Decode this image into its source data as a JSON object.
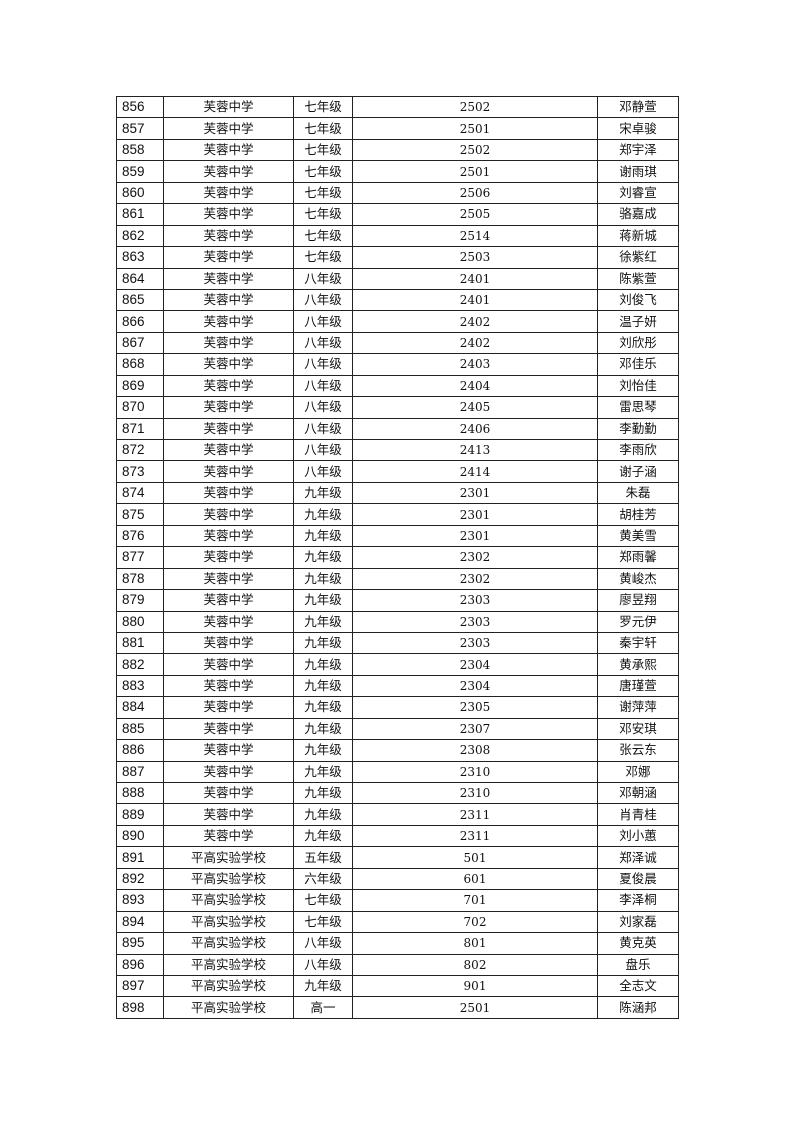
{
  "rows": [
    [
      "856",
      "芙蓉中学",
      "七年级",
      "2502",
      "邓静萱"
    ],
    [
      "857",
      "芙蓉中学",
      "七年级",
      "2501",
      "宋卓骏"
    ],
    [
      "858",
      "芙蓉中学",
      "七年级",
      "2502",
      "郑宇泽"
    ],
    [
      "859",
      "芙蓉中学",
      "七年级",
      "2501",
      "谢雨琪"
    ],
    [
      "860",
      "芙蓉中学",
      "七年级",
      "2506",
      "刘睿宣"
    ],
    [
      "861",
      "芙蓉中学",
      "七年级",
      "2505",
      "骆嘉成"
    ],
    [
      "862",
      "芙蓉中学",
      "七年级",
      "2514",
      "蒋新城"
    ],
    [
      "863",
      "芙蓉中学",
      "七年级",
      "2503",
      "徐紫红"
    ],
    [
      "864",
      "芙蓉中学",
      "八年级",
      "2401",
      "陈紫萱"
    ],
    [
      "865",
      "芙蓉中学",
      "八年级",
      "2401",
      "刘俊飞"
    ],
    [
      "866",
      "芙蓉中学",
      "八年级",
      "2402",
      "温子妍"
    ],
    [
      "867",
      "芙蓉中学",
      "八年级",
      "2402",
      "刘欣彤"
    ],
    [
      "868",
      "芙蓉中学",
      "八年级",
      "2403",
      "邓佳乐"
    ],
    [
      "869",
      "芙蓉中学",
      "八年级",
      "2404",
      "刘怡佳"
    ],
    [
      "870",
      "芙蓉中学",
      "八年级",
      "2405",
      "雷思琴"
    ],
    [
      "871",
      "芙蓉中学",
      "八年级",
      "2406",
      "李勤勤"
    ],
    [
      "872",
      "芙蓉中学",
      "八年级",
      "2413",
      "李雨欣"
    ],
    [
      "873",
      "芙蓉中学",
      "八年级",
      "2414",
      "谢子涵"
    ],
    [
      "874",
      "芙蓉中学",
      "九年级",
      "2301",
      "朱磊"
    ],
    [
      "875",
      "芙蓉中学",
      "九年级",
      "2301",
      "胡桂芳"
    ],
    [
      "876",
      "芙蓉中学",
      "九年级",
      "2301",
      "黄美雪"
    ],
    [
      "877",
      "芙蓉中学",
      "九年级",
      "2302",
      "郑雨馨"
    ],
    [
      "878",
      "芙蓉中学",
      "九年级",
      "2302",
      "黄峻杰"
    ],
    [
      "879",
      "芙蓉中学",
      "九年级",
      "2303",
      "廖昱翔"
    ],
    [
      "880",
      "芙蓉中学",
      "九年级",
      "2303",
      "罗元伊"
    ],
    [
      "881",
      "芙蓉中学",
      "九年级",
      "2303",
      "秦宇轩"
    ],
    [
      "882",
      "芙蓉中学",
      "九年级",
      "2304",
      "黄承熙"
    ],
    [
      "883",
      "芙蓉中学",
      "九年级",
      "2304",
      "唐瑾萱"
    ],
    [
      "884",
      "芙蓉中学",
      "九年级",
      "2305",
      "谢萍萍"
    ],
    [
      "885",
      "芙蓉中学",
      "九年级",
      "2307",
      "邓安琪"
    ],
    [
      "886",
      "芙蓉中学",
      "九年级",
      "2308",
      "张云东"
    ],
    [
      "887",
      "芙蓉中学",
      "九年级",
      "2310",
      "邓娜"
    ],
    [
      "888",
      "芙蓉中学",
      "九年级",
      "2310",
      "邓朝涵"
    ],
    [
      "889",
      "芙蓉中学",
      "九年级",
      "2311",
      "肖青桂"
    ],
    [
      "890",
      "芙蓉中学",
      "九年级",
      "2311",
      "刘小蕙"
    ],
    [
      "891",
      "平高实验学校",
      "五年级",
      "501",
      "郑泽诚"
    ],
    [
      "892",
      "平高实验学校",
      "六年级",
      "601",
      "夏俊晨"
    ],
    [
      "893",
      "平高实验学校",
      "七年级",
      "701",
      "李泽桐"
    ],
    [
      "894",
      "平高实验学校",
      "七年级",
      "702",
      "刘家磊"
    ],
    [
      "895",
      "平高实验学校",
      "八年级",
      "801",
      "黄克英"
    ],
    [
      "896",
      "平高实验学校",
      "八年级",
      "802",
      "盘乐"
    ],
    [
      "897",
      "平高实验学校",
      "九年级",
      "901",
      "全志文"
    ],
    [
      "898",
      "平高实验学校",
      "高一",
      "2501",
      "陈涵邦"
    ]
  ]
}
